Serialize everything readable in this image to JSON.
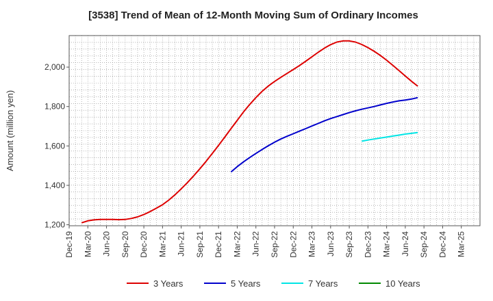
{
  "chart_data": {
    "type": "line",
    "title": "[3538]  Trend of Mean of 12-Month Moving Sum of Ordinary Incomes",
    "xlabel": "",
    "ylabel": "Amount (million yen)",
    "ylim": [
      1195,
      2160
    ],
    "yticks": [
      1200,
      1400,
      1600,
      1800,
      2000
    ],
    "ytick_labels": [
      "1,200",
      "1,400",
      "1,600",
      "1,800",
      "2,000"
    ],
    "x_start_index": 0,
    "x_end_index": 66,
    "xtick_labels": [
      "Dec-19",
      "Mar-20",
      "Jun-20",
      "Sep-20",
      "Dec-20",
      "Mar-21",
      "Jun-21",
      "Sep-21",
      "Dec-21",
      "Mar-22",
      "Jun-22",
      "Sep-22",
      "Dec-22",
      "Mar-23",
      "Jun-23",
      "Sep-23",
      "Dec-23",
      "Mar-24",
      "Jun-24",
      "Sep-24",
      "Dec-24",
      "Mar-25"
    ],
    "grid": true,
    "legend_position": "bottom",
    "series": [
      {
        "name": "3 Years",
        "color": "#dd0000",
        "points": [
          [
            2,
            1210
          ],
          [
            3,
            1220
          ],
          [
            4,
            1225
          ],
          [
            5,
            1227
          ],
          [
            6,
            1227
          ],
          [
            7,
            1227
          ],
          [
            8,
            1226
          ],
          [
            9,
            1227
          ],
          [
            10,
            1232
          ],
          [
            11,
            1240
          ],
          [
            12,
            1252
          ],
          [
            13,
            1267
          ],
          [
            14,
            1284
          ],
          [
            15,
            1302
          ],
          [
            16,
            1325
          ],
          [
            17,
            1352
          ],
          [
            18,
            1382
          ],
          [
            19,
            1414
          ],
          [
            20,
            1448
          ],
          [
            21,
            1484
          ],
          [
            22,
            1522
          ],
          [
            23,
            1562
          ],
          [
            24,
            1603
          ],
          [
            25,
            1645
          ],
          [
            26,
            1688
          ],
          [
            27,
            1730
          ],
          [
            28,
            1772
          ],
          [
            29,
            1810
          ],
          [
            30,
            1845
          ],
          [
            31,
            1877
          ],
          [
            32,
            1904
          ],
          [
            33,
            1927
          ],
          [
            34,
            1948
          ],
          [
            35,
            1968
          ],
          [
            36,
            1988
          ],
          [
            37,
            2008
          ],
          [
            38,
            2030
          ],
          [
            39,
            2052
          ],
          [
            40,
            2075
          ],
          [
            41,
            2096
          ],
          [
            42,
            2114
          ],
          [
            43,
            2127
          ],
          [
            44,
            2133
          ],
          [
            45,
            2133
          ],
          [
            46,
            2127
          ],
          [
            47,
            2115
          ],
          [
            48,
            2099
          ],
          [
            49,
            2080
          ],
          [
            50,
            2059
          ],
          [
            51,
            2035
          ],
          [
            52,
            2009
          ],
          [
            53,
            1982
          ],
          [
            54,
            1955
          ],
          [
            55,
            1928
          ],
          [
            56,
            1903
          ]
        ]
      },
      {
        "name": "5 Years",
        "color": "#0000cc",
        "points": [
          [
            26,
            1468
          ],
          [
            27,
            1495
          ],
          [
            28,
            1519
          ],
          [
            29,
            1541
          ],
          [
            30,
            1562
          ],
          [
            31,
            1582
          ],
          [
            32,
            1601
          ],
          [
            33,
            1619
          ],
          [
            34,
            1635
          ],
          [
            35,
            1649
          ],
          [
            36,
            1662
          ],
          [
            37,
            1675
          ],
          [
            38,
            1688
          ],
          [
            39,
            1701
          ],
          [
            40,
            1714
          ],
          [
            41,
            1727
          ],
          [
            42,
            1739
          ],
          [
            43,
            1749
          ],
          [
            44,
            1759
          ],
          [
            45,
            1769
          ],
          [
            46,
            1778
          ],
          [
            47,
            1786
          ],
          [
            48,
            1793
          ],
          [
            49,
            1800
          ],
          [
            50,
            1808
          ],
          [
            51,
            1816
          ],
          [
            52,
            1823
          ],
          [
            53,
            1829
          ],
          [
            54,
            1833
          ],
          [
            55,
            1838
          ],
          [
            56,
            1845
          ]
        ]
      },
      {
        "name": "7 Years",
        "color": "#00e5e5",
        "points": [
          [
            47,
            1624
          ],
          [
            48,
            1630
          ],
          [
            49,
            1635
          ],
          [
            50,
            1640
          ],
          [
            51,
            1645
          ],
          [
            52,
            1650
          ],
          [
            53,
            1655
          ],
          [
            54,
            1660
          ],
          [
            55,
            1664
          ],
          [
            56,
            1668
          ]
        ]
      },
      {
        "name": "10 Years",
        "color": "#008800",
        "points": []
      }
    ]
  }
}
